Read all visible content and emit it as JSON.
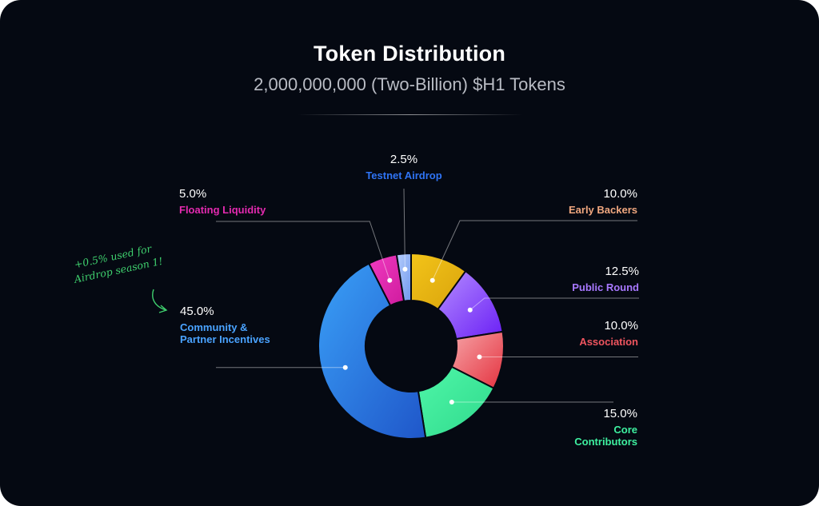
{
  "header": {
    "title": "Token Distribution",
    "subtitle": "2,000,000,000 (Two-Billion) $H1 Tokens"
  },
  "annotation": {
    "lines": [
      "+0.5% used for",
      "Airdrop season 1!"
    ],
    "color": "#3fd06e"
  },
  "chart_data": {
    "type": "pie",
    "style": "donut",
    "title": "Token Distribution",
    "subtitle": "2,000,000,000 (Two-Billion) $H1 Tokens",
    "unit": "%",
    "slices": [
      {
        "label": [
          "Early Backers"
        ],
        "value": 10.0,
        "value_label": "10.0%",
        "color": "#e8b714",
        "label_color": "#f0a77f"
      },
      {
        "label": [
          "Public Round"
        ],
        "value": 12.5,
        "value_label": "12.5%",
        "color": "#8a4dff",
        "label_color": "#a878ff"
      },
      {
        "label": [
          "Association"
        ],
        "value": 10.0,
        "value_label": "10.0%",
        "color": "#ee6b73",
        "label_color": "#f0555f"
      },
      {
        "label": [
          "Core",
          "Contributors"
        ],
        "value": 15.0,
        "value_label": "15.0%",
        "color": "#3ef0a0",
        "label_color": "#3ef0a0"
      },
      {
        "label": [
          "Community &",
          "Partner Incentives"
        ],
        "value": 45.0,
        "value_label": "45.0%",
        "color": "#2f86ee",
        "label_color": "#4aa3ff"
      },
      {
        "label": [
          "Floating Liquidity"
        ],
        "value": 5.0,
        "value_label": "5.0%",
        "color": "#e42ab0",
        "label_color": "#e42ab0"
      },
      {
        "label": [
          "Testnet Airdrop"
        ],
        "value": 2.5,
        "value_label": "2.5%",
        "color": "#8fb4f7",
        "label_color": "#2f74f5"
      }
    ],
    "legend": "none"
  }
}
